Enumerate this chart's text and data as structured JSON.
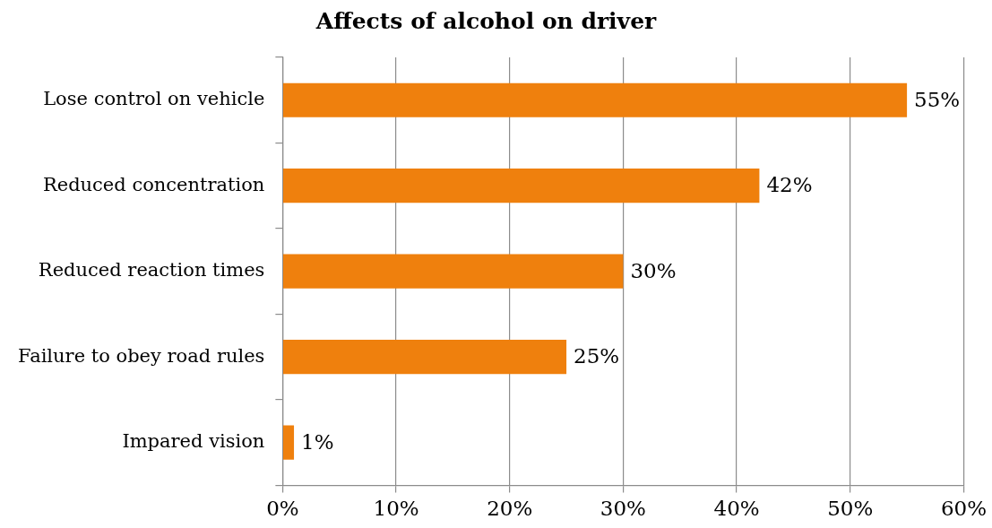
{
  "chart_data": {
    "type": "bar",
    "orientation": "horizontal",
    "title": "Affects of alcohol on driver",
    "categories": [
      "Lose control on vehicle",
      "Reduced concentration",
      "Reduced reaction times",
      "Failure to obey road rules",
      "Impared vision"
    ],
    "values": [
      55,
      42,
      30,
      25,
      1
    ],
    "value_labels": [
      "55%",
      "42%",
      "30%",
      "25%",
      "1%"
    ],
    "color": "#ef800d",
    "xlim": [
      0,
      60
    ],
    "xticks": [
      {
        "value": 0,
        "label": "0%"
      },
      {
        "value": 10,
        "label": "10%"
      },
      {
        "value": 20,
        "label": "20%"
      },
      {
        "value": 30,
        "label": "30%"
      },
      {
        "value": 40,
        "label": "40%"
      },
      {
        "value": 50,
        "label": "50%"
      },
      {
        "value": 60,
        "label": "60%"
      }
    ],
    "grid": "x"
  }
}
